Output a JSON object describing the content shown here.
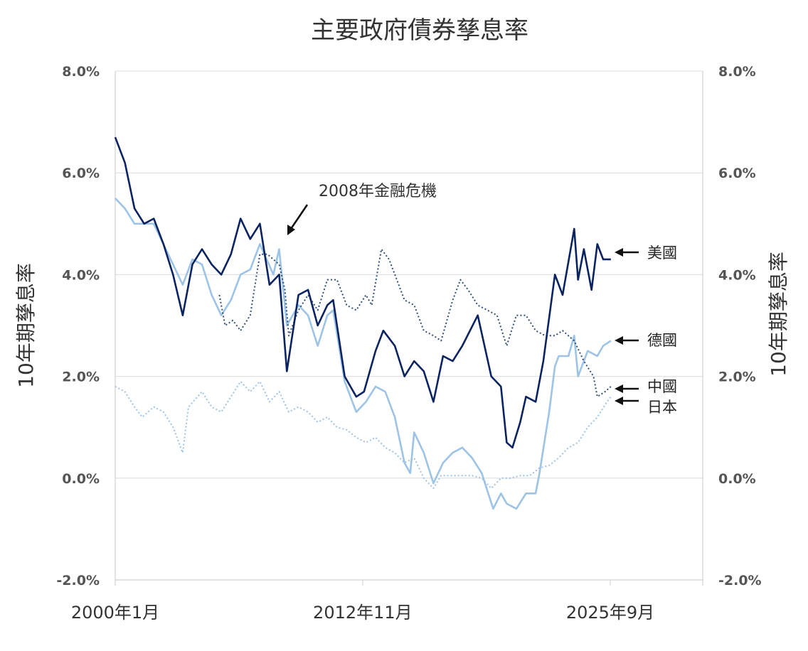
{
  "chart_data": {
    "type": "line",
    "title": "主要政府債券孳息率",
    "ylabel_left": "10年期孳息率",
    "ylabel_right": "10年期孳息率",
    "ylim": [
      -2,
      8
    ],
    "yticks": [
      -2,
      0,
      2,
      4,
      6,
      8
    ],
    "ytick_labels": [
      "-2.0%",
      "0.0%",
      "2.0%",
      "4.0%",
      "6.0%",
      "8.0%"
    ],
    "xlim": [
      2000.0,
      2030.5
    ],
    "xticks": [
      2000.0,
      2012.83,
      2025.67
    ],
    "xtick_labels": [
      "2000年1月",
      "2012年11月",
      "2025年9月"
    ],
    "grid": true,
    "annotation": {
      "text": "2008年金融危機",
      "x": 2008.7,
      "y": 4.8
    },
    "series": [
      {
        "name": "美國",
        "color": "#0b2461",
        "style": "solid",
        "width": 2.6,
        "x": [
          2000.0,
          2000.5,
          2001.0,
          2001.5,
          2002.0,
          2002.5,
          2003.0,
          2003.5,
          2004.0,
          2004.5,
          2005.0,
          2005.5,
          2006.0,
          2006.5,
          2007.0,
          2007.5,
          2008.0,
          2008.5,
          2008.9,
          2009.5,
          2010.0,
          2010.5,
          2011.0,
          2011.3,
          2011.9,
          2012.5,
          2012.9,
          2013.5,
          2013.9,
          2014.5,
          2015.0,
          2015.5,
          2016.0,
          2016.5,
          2017.0,
          2017.5,
          2018.0,
          2018.8,
          2019.5,
          2020.0,
          2020.3,
          2020.6,
          2021.0,
          2021.3,
          2021.8,
          2022.2,
          2022.8,
          2023.2,
          2023.8,
          2024.0,
          2024.3,
          2024.7,
          2025.0,
          2025.3,
          2025.7
        ],
        "y": [
          6.7,
          6.2,
          5.3,
          5.0,
          5.1,
          4.6,
          4.0,
          3.2,
          4.2,
          4.5,
          4.2,
          4.0,
          4.4,
          5.1,
          4.7,
          5.0,
          3.8,
          4.0,
          2.1,
          3.6,
          3.7,
          3.0,
          3.4,
          3.5,
          2.0,
          1.6,
          1.7,
          2.5,
          2.9,
          2.6,
          2.0,
          2.3,
          2.1,
          1.5,
          2.4,
          2.3,
          2.6,
          3.2,
          2.0,
          1.8,
          0.7,
          0.6,
          1.1,
          1.6,
          1.5,
          2.3,
          4.0,
          3.6,
          4.9,
          3.9,
          4.5,
          3.7,
          4.6,
          4.3,
          4.3
        ]
      },
      {
        "name": "德國",
        "color": "#9dc3e6",
        "style": "solid",
        "width": 2.6,
        "x": [
          2000.0,
          2000.5,
          2001.0,
          2002.0,
          2003.0,
          2003.5,
          2004.0,
          2004.5,
          2005.0,
          2005.5,
          2006.0,
          2006.5,
          2007.0,
          2007.5,
          2008.2,
          2008.5,
          2008.9,
          2009.5,
          2010.0,
          2010.5,
          2011.0,
          2011.3,
          2011.9,
          2012.5,
          2013.0,
          2013.5,
          2014.0,
          2014.5,
          2015.0,
          2015.3,
          2015.5,
          2016.0,
          2016.5,
          2017.0,
          2017.5,
          2018.0,
          2018.5,
          2019.0,
          2019.6,
          2020.0,
          2020.3,
          2020.8,
          2021.3,
          2021.8,
          2022.0,
          2022.5,
          2022.8,
          2023.0,
          2023.5,
          2023.8,
          2024.0,
          2024.5,
          2025.0,
          2025.3,
          2025.7
        ],
        "y": [
          5.5,
          5.3,
          5.0,
          5.0,
          4.2,
          3.8,
          4.3,
          4.2,
          3.6,
          3.2,
          3.5,
          4.0,
          4.1,
          4.6,
          4.0,
          4.5,
          3.0,
          3.4,
          3.2,
          2.6,
          3.2,
          3.3,
          1.9,
          1.3,
          1.5,
          1.8,
          1.7,
          1.2,
          0.3,
          0.1,
          0.9,
          0.5,
          -0.1,
          0.3,
          0.5,
          0.6,
          0.4,
          0.1,
          -0.6,
          -0.3,
          -0.5,
          -0.6,
          -0.3,
          -0.3,
          0.1,
          1.3,
          2.2,
          2.4,
          2.4,
          2.8,
          2.0,
          2.5,
          2.4,
          2.6,
          2.7
        ]
      },
      {
        "name": "中國",
        "color": "#2d4f7c",
        "style": "dotted",
        "width": 2,
        "x": [
          2005.4,
          2005.7,
          2006.1,
          2006.5,
          2007.0,
          2007.5,
          2007.9,
          2008.5,
          2008.8,
          2009.0,
          2009.5,
          2010.0,
          2010.5,
          2011.0,
          2011.5,
          2012.0,
          2012.5,
          2013.0,
          2013.3,
          2013.8,
          2014.2,
          2014.6,
          2015.0,
          2015.5,
          2016.0,
          2016.5,
          2016.9,
          2017.5,
          2017.9,
          2018.3,
          2018.8,
          2019.3,
          2019.8,
          2020.3,
          2020.8,
          2021.3,
          2021.8,
          2022.3,
          2022.8,
          2023.2,
          2023.8,
          2024.3,
          2024.8,
          2025.0,
          2025.4,
          2025.7
        ],
        "y": [
          3.6,
          3.0,
          3.1,
          2.9,
          3.2,
          4.4,
          4.4,
          4.2,
          3.7,
          2.8,
          3.3,
          3.6,
          3.3,
          3.9,
          3.9,
          3.4,
          3.3,
          3.6,
          3.4,
          4.5,
          4.3,
          3.9,
          3.5,
          3.4,
          2.9,
          2.8,
          2.7,
          3.5,
          3.9,
          3.7,
          3.4,
          3.3,
          3.2,
          2.6,
          3.2,
          3.2,
          2.9,
          2.8,
          2.8,
          2.9,
          2.7,
          2.3,
          2.0,
          1.6,
          1.7,
          1.8
        ]
      },
      {
        "name": "日本",
        "color": "#9dc3e6",
        "style": "dotted",
        "width": 2,
        "x": [
          2000.0,
          2000.5,
          2001.0,
          2001.4,
          2002.0,
          2002.5,
          2003.0,
          2003.5,
          2003.8,
          2004.5,
          2005.0,
          2005.5,
          2006.0,
          2006.5,
          2007.0,
          2007.5,
          2008.0,
          2008.5,
          2009.0,
          2009.5,
          2010.0,
          2010.5,
          2011.0,
          2011.5,
          2012.0,
          2012.5,
          2013.0,
          2013.5,
          2014.0,
          2014.5,
          2015.0,
          2015.5,
          2016.0,
          2016.5,
          2016.9,
          2017.5,
          2018.0,
          2018.5,
          2019.0,
          2019.5,
          2020.0,
          2020.5,
          2021.0,
          2021.5,
          2022.0,
          2022.5,
          2023.0,
          2023.5,
          2024.0,
          2024.5,
          2025.0,
          2025.5,
          2025.7
        ],
        "y": [
          1.8,
          1.7,
          1.4,
          1.2,
          1.4,
          1.3,
          1.0,
          0.5,
          1.4,
          1.7,
          1.4,
          1.3,
          1.6,
          1.9,
          1.7,
          1.9,
          1.5,
          1.7,
          1.3,
          1.4,
          1.3,
          1.1,
          1.2,
          1.0,
          0.95,
          0.8,
          0.7,
          0.8,
          0.6,
          0.5,
          0.3,
          0.4,
          0.0,
          -0.2,
          0.05,
          0.05,
          0.05,
          0.05,
          0.0,
          -0.2,
          0.0,
          0.0,
          0.05,
          0.05,
          0.2,
          0.25,
          0.4,
          0.6,
          0.7,
          1.0,
          1.2,
          1.5,
          1.6
        ]
      }
    ],
    "series_labels": [
      {
        "text": "美國",
        "y": 4.4
      },
      {
        "text": "德國",
        "y": 2.7
      },
      {
        "text": "中國",
        "y": 1.8
      },
      {
        "text": "日本",
        "y": 1.5
      }
    ]
  }
}
